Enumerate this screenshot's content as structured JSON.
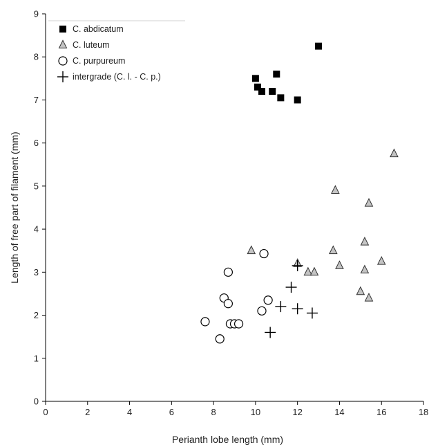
{
  "chart_data": {
    "type": "scatter",
    "title": "",
    "xlabel": "Perianth lobe length (mm)",
    "ylabel": "Length of free part of filament (mm)",
    "xlim": [
      0,
      18
    ],
    "ylim": [
      0,
      9
    ],
    "xticks": [
      0,
      2,
      4,
      6,
      8,
      10,
      12,
      14,
      16,
      18
    ],
    "yticks": [
      0,
      1,
      2,
      3,
      4,
      5,
      6,
      7,
      8,
      9
    ],
    "grid": false,
    "legend": {
      "placement": "top-left"
    },
    "series": [
      {
        "name": "C. abdicatum",
        "marker": "filled-square",
        "color": "#000000",
        "points": [
          [
            10.0,
            7.5
          ],
          [
            10.1,
            7.3
          ],
          [
            10.3,
            7.2
          ],
          [
            10.8,
            7.2
          ],
          [
            11.0,
            7.6
          ],
          [
            11.2,
            7.05
          ],
          [
            12.0,
            7.0
          ],
          [
            13.0,
            8.25
          ]
        ]
      },
      {
        "name": "C. luteum",
        "marker": "open-triangle",
        "color": "#9a9a9a",
        "points": [
          [
            9.8,
            3.5
          ],
          [
            12.0,
            3.2
          ],
          [
            12.5,
            3.0
          ],
          [
            12.8,
            3.0
          ],
          [
            13.7,
            3.5
          ],
          [
            13.8,
            4.9
          ],
          [
            14.0,
            3.15
          ],
          [
            15.0,
            2.55
          ],
          [
            15.2,
            3.7
          ],
          [
            15.2,
            3.05
          ],
          [
            15.4,
            4.6
          ],
          [
            15.4,
            2.4
          ],
          [
            16.0,
            3.25
          ],
          [
            16.6,
            5.75
          ]
        ]
      },
      {
        "name": "C. purpureum",
        "marker": "open-circle",
        "color": "#000000",
        "points": [
          [
            7.6,
            1.85
          ],
          [
            8.3,
            1.45
          ],
          [
            8.5,
            2.4
          ],
          [
            8.7,
            3.0
          ],
          [
            8.7,
            2.27
          ],
          [
            8.8,
            1.8
          ],
          [
            9.0,
            1.8
          ],
          [
            9.2,
            1.8
          ],
          [
            10.3,
            2.1
          ],
          [
            10.4,
            3.43
          ],
          [
            10.6,
            2.35
          ]
        ]
      },
      {
        "name": "intergrade (C. l. - C. p.)",
        "marker": "plus",
        "color": "#000000",
        "points": [
          [
            10.7,
            1.6
          ],
          [
            11.2,
            2.2
          ],
          [
            11.7,
            2.65
          ],
          [
            12.0,
            2.15
          ],
          [
            12.0,
            3.15
          ],
          [
            12.7,
            2.05
          ]
        ]
      }
    ]
  }
}
